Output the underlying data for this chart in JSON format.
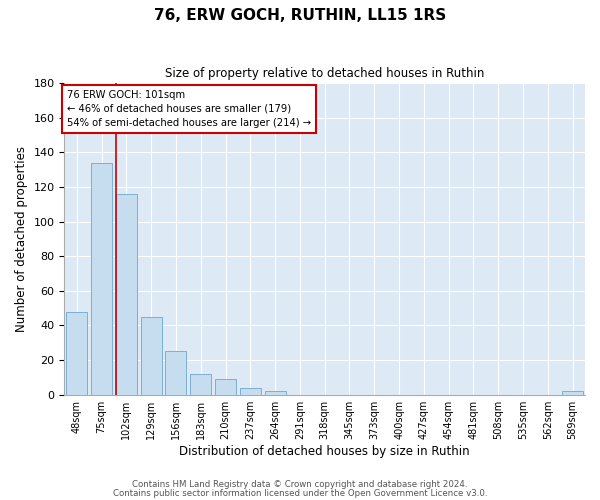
{
  "title": "76, ERW GOCH, RUTHIN, LL15 1RS",
  "subtitle": "Size of property relative to detached houses in Ruthin",
  "xlabel": "Distribution of detached houses by size in Ruthin",
  "ylabel": "Number of detached properties",
  "bar_values": [
    48,
    134,
    116,
    45,
    25,
    12,
    9,
    4,
    2,
    0,
    0,
    0,
    0,
    0,
    0,
    0,
    0,
    0,
    0,
    0,
    2
  ],
  "bin_labels": [
    "48sqm",
    "75sqm",
    "102sqm",
    "129sqm",
    "156sqm",
    "183sqm",
    "210sqm",
    "237sqm",
    "264sqm",
    "291sqm",
    "318sqm",
    "345sqm",
    "373sqm",
    "400sqm",
    "427sqm",
    "454sqm",
    "481sqm",
    "508sqm",
    "535sqm",
    "562sqm",
    "589sqm"
  ],
  "bar_color": "#c6ddf0",
  "bar_edge_color": "#7aafd4",
  "highlight_line_color": "#cc0000",
  "annotation_text_line1": "76 ERW GOCH: 101sqm",
  "annotation_text_line2": "← 46% of detached houses are smaller (179)",
  "annotation_text_line3": "54% of semi-detached houses are larger (214) →",
  "annotation_box_color": "#cc0000",
  "ylim": [
    0,
    180
  ],
  "yticks": [
    0,
    20,
    40,
    60,
    80,
    100,
    120,
    140,
    160,
    180
  ],
  "footer_line1": "Contains HM Land Registry data © Crown copyright and database right 2024.",
  "footer_line2": "Contains public sector information licensed under the Open Government Licence v3.0.",
  "fig_width": 6.0,
  "fig_height": 5.0,
  "dpi": 100
}
